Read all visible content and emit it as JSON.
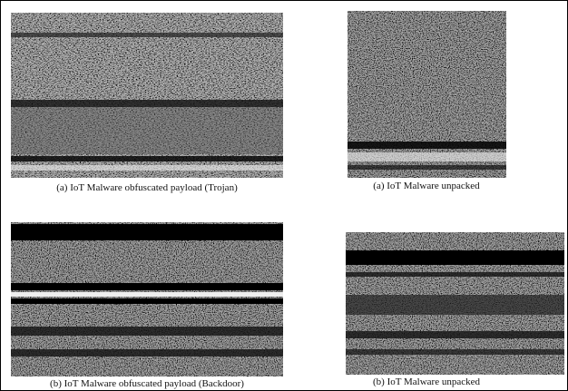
{
  "figures": [
    {
      "caption": "(a) IoT Malware obfuscated payload (Trojan)"
    },
    {
      "caption": "(a) IoT Malware unpacked"
    },
    {
      "caption": "(b) IoT Malware obfuscated payload (Backdoor)"
    },
    {
      "caption": "(b) IoT Malware unpacked"
    }
  ]
}
